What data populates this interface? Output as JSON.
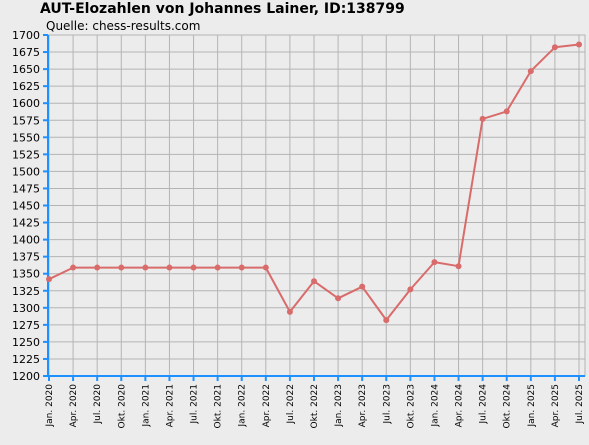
{
  "chart_data": {
    "type": "line",
    "title": "AUT-Elozahlen von Johannes Lainer, ID:138799",
    "subtitle": "Quelle: chess-results.com",
    "xlabel": "",
    "ylabel": "",
    "ylim": [
      1200,
      1700
    ],
    "ytick_step": 25,
    "grid": true,
    "categories": [
      "Jan. 2020",
      "Apr. 2020",
      "Jul. 2020",
      "Okt. 2020",
      "Jan. 2021",
      "Apr. 2021",
      "Jul. 2021",
      "Okt. 2021",
      "Jan. 2022",
      "Apr. 2022",
      "Jul. 2022",
      "Okt. 2022",
      "Jan. 2023",
      "Apr. 2023",
      "Jul. 2023",
      "Okt. 2023",
      "Jan. 2024",
      "Apr. 2024",
      "Jul. 2024",
      "Okt. 2024",
      "Jan. 2025",
      "Apr. 2025",
      "Jul. 2025"
    ],
    "series": [
      {
        "color": "#d96b6b",
        "values": [
          1342,
          1359,
          1359,
          1359,
          1359,
          1359,
          1359,
          1359,
          1359,
          1359,
          1294,
          1339,
          1314,
          1331,
          1282,
          1327,
          1367,
          1361,
          1577,
          1588,
          1647,
          1682,
          1686
        ]
      }
    ]
  },
  "colors": {
    "background": "#ececec",
    "grid": "#b4b4b4",
    "axis": "#1e90ff",
    "line": "#d96b6b"
  }
}
